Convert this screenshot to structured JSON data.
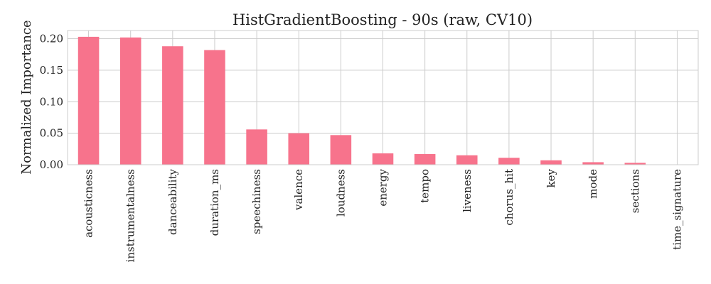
{
  "chart_data": {
    "type": "bar",
    "title": "HistGradientBoosting - 90s (raw, CV10)",
    "xlabel": "",
    "ylabel": "Normalized Importance",
    "ylim": [
      0,
      0.213
    ],
    "yticks": [
      "0.00",
      "0.05",
      "0.10",
      "0.15",
      "0.20"
    ],
    "categories": [
      "acousticness",
      "instrumentalness",
      "danceability",
      "duration_ms",
      "speechiness",
      "valence",
      "loudness",
      "energy",
      "tempo",
      "liveness",
      "chorus_hit",
      "key",
      "mode",
      "sections",
      "time_signature"
    ],
    "values": [
      0.203,
      0.202,
      0.188,
      0.182,
      0.056,
      0.05,
      0.047,
      0.018,
      0.017,
      0.015,
      0.011,
      0.007,
      0.004,
      0.003,
      0.0
    ],
    "bar_color": "#f7738c",
    "grid": true,
    "legend": false
  }
}
